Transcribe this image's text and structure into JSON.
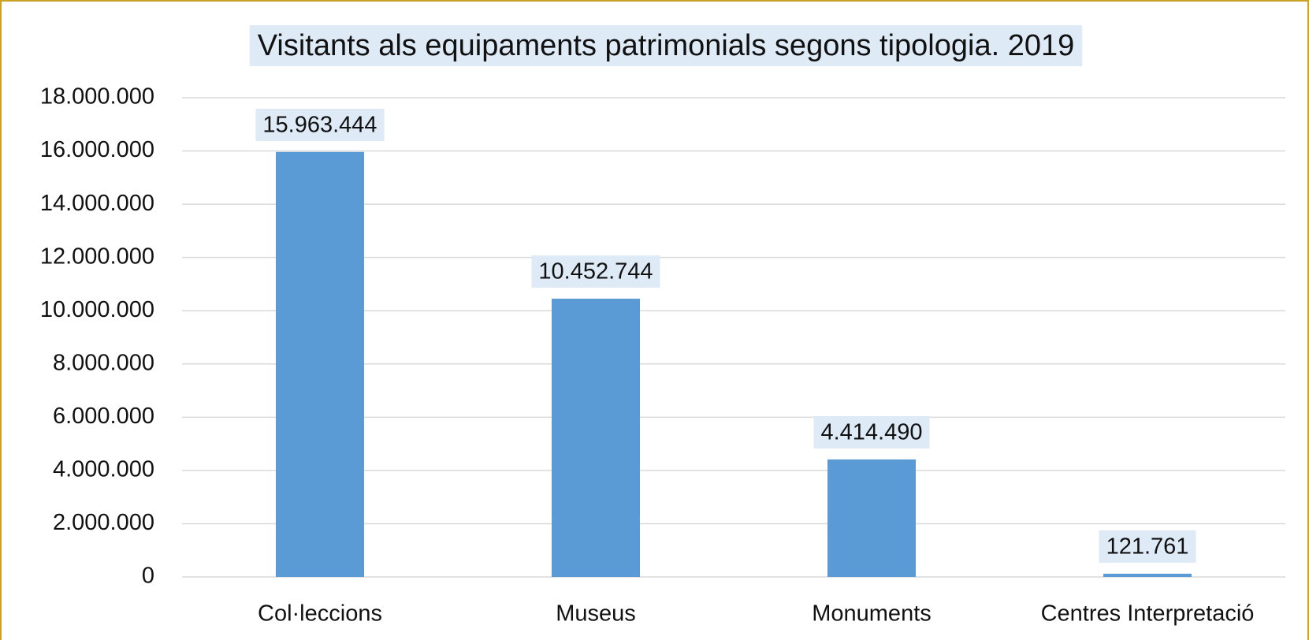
{
  "chart_data": {
    "type": "bar",
    "title": "Visitants als equipaments patrimonials segons tipologia. 2019",
    "categories": [
      "Col·leccions",
      "Museus",
      "Monuments",
      "Centres Interpretació"
    ],
    "values": [
      15963444,
      10452744,
      4414490,
      121761
    ],
    "value_labels": [
      "15.963.444",
      "10.452.744",
      "4.414.490",
      "121.761"
    ],
    "color": "#5b9bd5",
    "ylim": [
      0,
      18000000
    ],
    "yticks": [
      0,
      {
        "value": 2000000,
        "label": "2.000.000"
      },
      {
        "value": 4000000,
        "label": "4.000.000"
      },
      {
        "value": 6000000,
        "label": "6.000.000"
      },
      {
        "value": 8000000,
        "label": "8.000.000"
      },
      {
        "value": 10000000,
        "label": "10.000.000"
      },
      {
        "value": 12000000,
        "label": "12.000.000"
      },
      {
        "value": 14000000,
        "label": "14.000.000"
      },
      {
        "value": 16000000,
        "label": "16.000.000"
      },
      {
        "value": 18000000,
        "label": "18.000.000"
      }
    ],
    "grid": true
  }
}
